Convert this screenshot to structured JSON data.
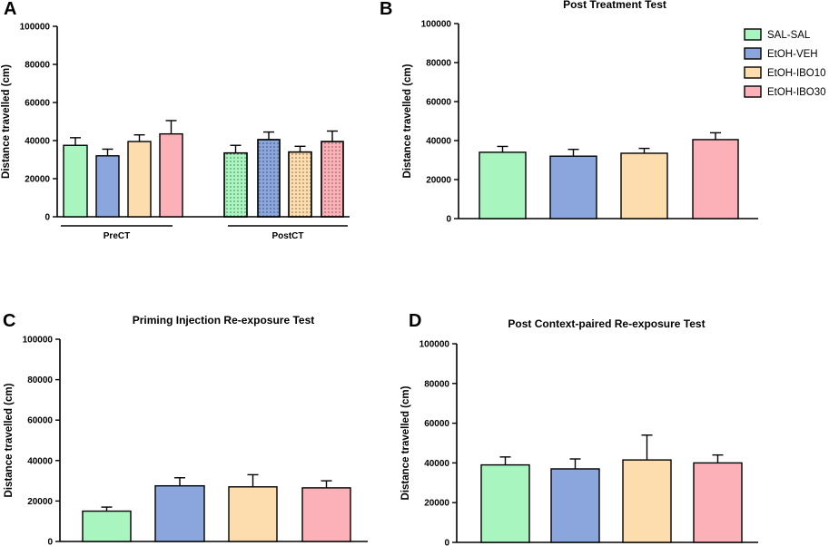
{
  "legend": [
    {
      "name": "SAL-SAL",
      "color": "#a8f5bf"
    },
    {
      "name": "EtOH-VEH",
      "color": "#8aa6dc"
    },
    {
      "name": "EtOH-IBO10",
      "color": "#fddcae"
    },
    {
      "name": "EtOH-IBO30",
      "color": "#fcb1b8"
    }
  ],
  "chart_data": [
    {
      "panel": "A",
      "type": "bar",
      "title": "",
      "ylabel": "Distance travelled (cm)",
      "ylim": [
        0,
        100000
      ],
      "yticks": [
        "0",
        "20000",
        "40000",
        "60000",
        "80000",
        "100000"
      ],
      "groups": [
        "PreCT",
        "PostCT"
      ],
      "series": [
        {
          "name": "SAL-SAL",
          "values": [
            37500,
            33500
          ],
          "errors": [
            4000,
            4000
          ]
        },
        {
          "name": "EtOH-VEH",
          "values": [
            32000,
            40500
          ],
          "errors": [
            3500,
            4000
          ]
        },
        {
          "name": "EtOH-IBO10",
          "values": [
            39500,
            34000
          ],
          "errors": [
            3500,
            3000
          ]
        },
        {
          "name": "EtOH-IBO30",
          "values": [
            43500,
            39500
          ],
          "errors": [
            7000,
            5500
          ]
        }
      ]
    },
    {
      "panel": "B",
      "type": "bar",
      "title": "Post Treatment Test",
      "ylabel": "Distance travelled (cm)",
      "ylim": [
        0,
        100000
      ],
      "yticks": [
        "0",
        "20000",
        "40000",
        "60000",
        "80000",
        "100000"
      ],
      "categories": [
        "SAL-SAL",
        "EtOH-VEH",
        "EtOH-IBO10",
        "EtOH-IBO30"
      ],
      "values": [
        34000,
        32000,
        33500,
        40500
      ],
      "errors": [
        3000,
        3500,
        2500,
        3500
      ]
    },
    {
      "panel": "C",
      "type": "bar",
      "title": "Priming Injection Re-exposure Test",
      "ylabel": "Distance travelled (cm)",
      "ylim": [
        0,
        100000
      ],
      "yticks": [
        "0",
        "20000",
        "40000",
        "60000",
        "80000",
        "100000"
      ],
      "categories": [
        "SAL-SAL",
        "EtOH-VEH",
        "EtOH-IBO10",
        "EtOH-IBO30"
      ],
      "values": [
        15000,
        27500,
        27000,
        26500
      ],
      "errors": [
        2000,
        4000,
        6000,
        3500
      ]
    },
    {
      "panel": "D",
      "type": "bar",
      "title": "Post Context-paired Re-exposure Test",
      "ylabel": "Distance travelled (cm)",
      "ylim": [
        0,
        100000
      ],
      "yticks": [
        "0",
        "20000",
        "40000",
        "60000",
        "80000",
        "100000"
      ],
      "categories": [
        "SAL-SAL",
        "EtOH-VEH",
        "EtOH-IBO10",
        "EtOH-IBO30"
      ],
      "values": [
        39000,
        37000,
        41500,
        40000
      ],
      "errors": [
        4000,
        5000,
        12500,
        4000
      ]
    }
  ]
}
